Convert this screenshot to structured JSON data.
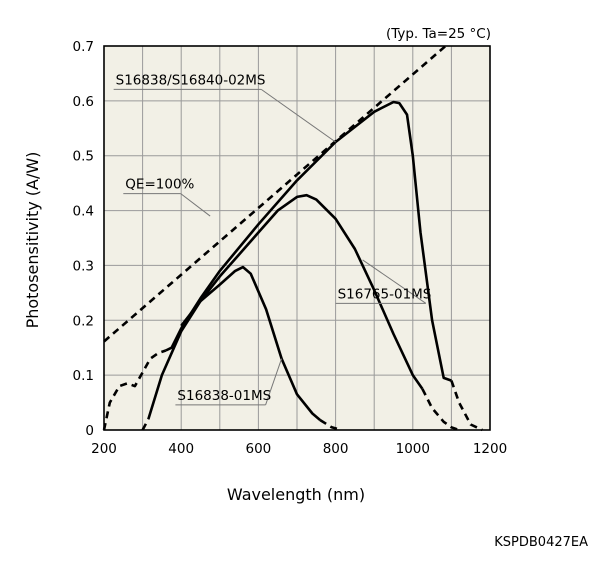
{
  "chart_data": {
    "type": "line",
    "condition_note": "(Typ. Ta=25 °C)",
    "xlabel": "Wavelength (nm)",
    "ylabel": "Photosensitivity (A/W)",
    "xlim": [
      200,
      1200
    ],
    "ylim": [
      0,
      0.7
    ],
    "xticks": [
      200,
      400,
      600,
      800,
      1000,
      1200
    ],
    "yticks": [
      0,
      0.1,
      0.2,
      0.3,
      0.4,
      0.5,
      0.6,
      0.7
    ],
    "ytick_labels": [
      "0",
      "0.1",
      "0.2",
      "0.3",
      "0.4",
      "0.5",
      "0.6",
      "0.7"
    ],
    "grid": true,
    "minor_vertical_grid_step": 100,
    "background": "#f2f0e6",
    "series": [
      {
        "name": "S16838/S16840-02MS",
        "segments": [
          {
            "style": "dashed",
            "points": [
              [
                200,
                0
              ],
              [
                215,
                0.05
              ],
              [
                240,
                0.08
              ],
              [
                260,
                0.085
              ],
              [
                280,
                0.08
              ],
              [
                300,
                0.105
              ],
              [
                320,
                0.13
              ],
              [
                340,
                0.14
              ],
              [
                360,
                0.145
              ]
            ]
          },
          {
            "style": "solid",
            "points": [
              [
                360,
                0.145
              ],
              [
                375,
                0.15
              ],
              [
                400,
                0.185
              ],
              [
                450,
                0.24
              ],
              [
                500,
                0.29
              ],
              [
                600,
                0.375
              ],
              [
                700,
                0.455
              ],
              [
                800,
                0.525
              ],
              [
                900,
                0.58
              ],
              [
                950,
                0.598
              ],
              [
                965,
                0.596
              ],
              [
                985,
                0.575
              ],
              [
                1000,
                0.5
              ],
              [
                1020,
                0.36
              ],
              [
                1050,
                0.2
              ],
              [
                1080,
                0.095
              ],
              [
                1100,
                0.09
              ]
            ]
          },
          {
            "style": "dashed",
            "points": [
              [
                1100,
                0.09
              ],
              [
                1120,
                0.05
              ],
              [
                1150,
                0.01
              ],
              [
                1180,
                0.0
              ]
            ]
          }
        ]
      },
      {
        "name": "S16765-01MS",
        "segments": [
          {
            "style": "dashed",
            "points": [
              [
                300,
                0.0
              ],
              [
                315,
                0.02
              ]
            ]
          },
          {
            "style": "solid",
            "points": [
              [
                315,
                0.02
              ],
              [
                350,
                0.1
              ],
              [
                400,
                0.18
              ],
              [
                450,
                0.235
              ],
              [
                500,
                0.28
              ],
              [
                550,
                0.32
              ],
              [
                600,
                0.36
              ],
              [
                650,
                0.4
              ],
              [
                700,
                0.425
              ],
              [
                725,
                0.428
              ],
              [
                750,
                0.42
              ],
              [
                800,
                0.385
              ],
              [
                850,
                0.33
              ],
              [
                900,
                0.255
              ],
              [
                950,
                0.175
              ],
              [
                1000,
                0.1
              ],
              [
                1025,
                0.075
              ]
            ]
          },
          {
            "style": "dashed",
            "points": [
              [
                1025,
                0.075
              ],
              [
                1050,
                0.04
              ],
              [
                1080,
                0.015
              ],
              [
                1100,
                0.005
              ],
              [
                1120,
                0.0
              ]
            ]
          }
        ]
      },
      {
        "name": "S16838-01MS",
        "segments": [
          {
            "style": "solid",
            "points": [
              [
                400,
                0.19
              ],
              [
                450,
                0.235
              ],
              [
                500,
                0.265
              ],
              [
                540,
                0.29
              ],
              [
                560,
                0.297
              ],
              [
                580,
                0.285
              ],
              [
                620,
                0.22
              ],
              [
                660,
                0.13
              ],
              [
                700,
                0.065
              ],
              [
                740,
                0.03
              ],
              [
                760,
                0.018
              ]
            ]
          },
          {
            "style": "dashed",
            "points": [
              [
                760,
                0.018
              ],
              [
                790,
                0.005
              ],
              [
                815,
                0.0
              ]
            ]
          }
        ]
      },
      {
        "name": "QE=100%",
        "segments": [
          {
            "style": "dashed",
            "points": [
              [
                200,
                0.1613
              ],
              [
                1085,
                0.7
              ]
            ]
          }
        ]
      }
    ],
    "annotations": [
      {
        "text": "S16838/S16840-02MS",
        "series": "S16838/S16840-02MS",
        "label_at": [
          225,
          0.63
        ],
        "points_to": [
          800,
          0.525
        ]
      },
      {
        "text": "QE=100%",
        "series": "QE=100%",
        "label_at": [
          250,
          0.44
        ],
        "points_to": [
          475,
          0.39
        ]
      },
      {
        "text": "S16765-01MS",
        "series": "S16765-01MS",
        "label_at": [
          800,
          0.24
        ],
        "points_to": [
          870,
          0.31
        ]
      },
      {
        "text": "S16838-01MS",
        "series": "S16838-01MS",
        "label_at": [
          385,
          0.055
        ],
        "points_to": [
          660,
          0.13
        ]
      }
    ]
  },
  "figure_code": "KSPDB0427EA"
}
